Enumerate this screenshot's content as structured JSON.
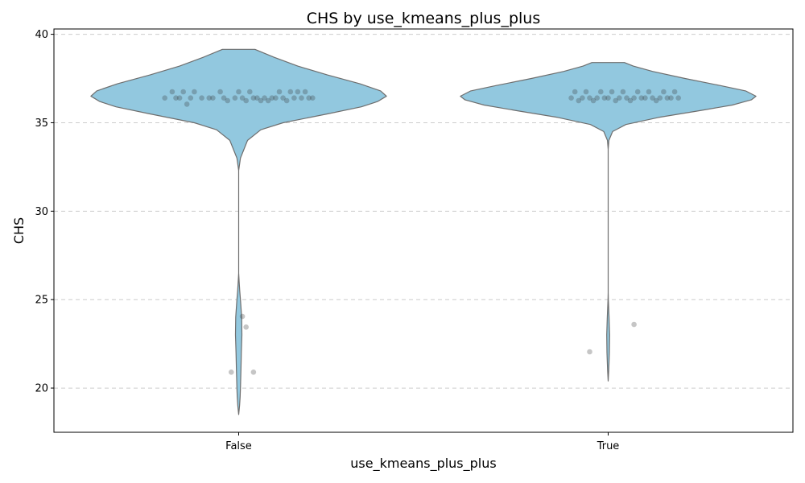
{
  "chart_data": {
    "type": "violin",
    "title": "CHS by use_kmeans_plus_plus",
    "xlabel": "use_kmeans_plus_plus",
    "ylabel": "CHS",
    "ylim": [
      17.5,
      40.3
    ],
    "yticks": [
      20,
      25,
      30,
      35,
      40
    ],
    "grid": "y-dashed",
    "categories": [
      "False",
      "True"
    ],
    "colors": {
      "violin_fill": "#92c8df",
      "violin_edge": "#6e6e6e",
      "point": "#333333",
      "grid": "#cccccc"
    },
    "groups": [
      {
        "name": "False",
        "range": [
          18.5,
          39.15
        ],
        "density": [
          [
            18.5,
            0.0
          ],
          [
            19.0,
            0.006
          ],
          [
            19.5,
            0.01
          ],
          [
            20.0,
            0.012
          ],
          [
            21.0,
            0.015
          ],
          [
            22.0,
            0.018
          ],
          [
            23.0,
            0.022
          ],
          [
            24.0,
            0.02
          ],
          [
            25.0,
            0.012
          ],
          [
            25.5,
            0.007
          ],
          [
            26.0,
            0.003
          ],
          [
            26.5,
            0.0
          ],
          [
            27.0,
            0.0
          ],
          [
            30.0,
            0.0
          ],
          [
            32.3,
            0.0
          ],
          [
            33.0,
            0.012
          ],
          [
            34.0,
            0.06
          ],
          [
            34.6,
            0.15
          ],
          [
            35.0,
            0.3
          ],
          [
            35.5,
            0.6
          ],
          [
            35.9,
            0.83
          ],
          [
            36.2,
            0.94
          ],
          [
            36.4,
            0.98
          ],
          [
            36.5,
            1.0
          ],
          [
            36.8,
            0.96
          ],
          [
            37.2,
            0.82
          ],
          [
            37.7,
            0.6
          ],
          [
            38.2,
            0.4
          ],
          [
            38.7,
            0.24
          ],
          [
            39.15,
            0.11
          ]
        ],
        "points": [
          {
            "x": -0.2,
            "y": 36.4
          },
          {
            "x": -0.18,
            "y": 36.75
          },
          {
            "x": -0.17,
            "y": 36.4
          },
          {
            "x": -0.16,
            "y": 36.4
          },
          {
            "x": -0.15,
            "y": 36.75
          },
          {
            "x": -0.14,
            "y": 36.05
          },
          {
            "x": -0.13,
            "y": 36.4
          },
          {
            "x": -0.12,
            "y": 36.75
          },
          {
            "x": -0.1,
            "y": 36.4
          },
          {
            "x": -0.08,
            "y": 36.4
          },
          {
            "x": -0.07,
            "y": 36.4
          },
          {
            "x": -0.05,
            "y": 36.75
          },
          {
            "x": -0.04,
            "y": 36.4
          },
          {
            "x": -0.03,
            "y": 36.25
          },
          {
            "x": -0.01,
            "y": 36.4
          },
          {
            "x": 0.0,
            "y": 36.75
          },
          {
            "x": 0.01,
            "y": 36.4
          },
          {
            "x": 0.02,
            "y": 36.25
          },
          {
            "x": 0.03,
            "y": 36.75
          },
          {
            "x": 0.04,
            "y": 36.4
          },
          {
            "x": 0.05,
            "y": 36.4
          },
          {
            "x": 0.06,
            "y": 36.25
          },
          {
            "x": 0.07,
            "y": 36.4
          },
          {
            "x": 0.08,
            "y": 36.25
          },
          {
            "x": 0.09,
            "y": 36.4
          },
          {
            "x": 0.1,
            "y": 36.4
          },
          {
            "x": 0.11,
            "y": 36.75
          },
          {
            "x": 0.12,
            "y": 36.4
          },
          {
            "x": 0.13,
            "y": 36.25
          },
          {
            "x": 0.14,
            "y": 36.75
          },
          {
            "x": 0.15,
            "y": 36.4
          },
          {
            "x": 0.16,
            "y": 36.75
          },
          {
            "x": 0.17,
            "y": 36.4
          },
          {
            "x": 0.18,
            "y": 36.75
          },
          {
            "x": 0.19,
            "y": 36.4
          },
          {
            "x": 0.2,
            "y": 36.4
          },
          {
            "x": 0.01,
            "y": 24.05
          },
          {
            "x": 0.02,
            "y": 23.45
          },
          {
            "x": -0.02,
            "y": 20.9
          },
          {
            "x": 0.04,
            "y": 20.9
          }
        ]
      },
      {
        "name": "True",
        "range": [
          20.4,
          38.4
        ],
        "density": [
          [
            20.4,
            0.0
          ],
          [
            21.0,
            0.004
          ],
          [
            22.0,
            0.008
          ],
          [
            23.0,
            0.01
          ],
          [
            24.0,
            0.006
          ],
          [
            25.0,
            0.001
          ],
          [
            25.4,
            0.0
          ],
          [
            30.0,
            0.0
          ],
          [
            33.5,
            0.0
          ],
          [
            34.0,
            0.005
          ],
          [
            34.5,
            0.03
          ],
          [
            34.9,
            0.12
          ],
          [
            35.3,
            0.34
          ],
          [
            35.7,
            0.63
          ],
          [
            36.0,
            0.84
          ],
          [
            36.3,
            0.97
          ],
          [
            36.5,
            1.0
          ],
          [
            36.8,
            0.93
          ],
          [
            37.1,
            0.76
          ],
          [
            37.5,
            0.52
          ],
          [
            37.9,
            0.3
          ],
          [
            38.2,
            0.17
          ],
          [
            38.4,
            0.11
          ]
        ],
        "points": [
          {
            "x": -0.1,
            "y": 36.4
          },
          {
            "x": -0.09,
            "y": 36.75
          },
          {
            "x": -0.08,
            "y": 36.25
          },
          {
            "x": -0.07,
            "y": 36.4
          },
          {
            "x": -0.06,
            "y": 36.75
          },
          {
            "x": -0.05,
            "y": 36.4
          },
          {
            "x": -0.04,
            "y": 36.25
          },
          {
            "x": -0.03,
            "y": 36.4
          },
          {
            "x": -0.02,
            "y": 36.75
          },
          {
            "x": -0.01,
            "y": 36.4
          },
          {
            "x": 0.0,
            "y": 36.4
          },
          {
            "x": 0.01,
            "y": 36.75
          },
          {
            "x": 0.02,
            "y": 36.25
          },
          {
            "x": 0.03,
            "y": 36.4
          },
          {
            "x": 0.04,
            "y": 36.75
          },
          {
            "x": 0.05,
            "y": 36.4
          },
          {
            "x": 0.06,
            "y": 36.25
          },
          {
            "x": 0.07,
            "y": 36.4
          },
          {
            "x": 0.08,
            "y": 36.75
          },
          {
            "x": 0.09,
            "y": 36.4
          },
          {
            "x": 0.1,
            "y": 36.4
          },
          {
            "x": 0.11,
            "y": 36.75
          },
          {
            "x": 0.12,
            "y": 36.4
          },
          {
            "x": 0.13,
            "y": 36.25
          },
          {
            "x": 0.14,
            "y": 36.4
          },
          {
            "x": 0.15,
            "y": 36.75
          },
          {
            "x": 0.16,
            "y": 36.4
          },
          {
            "x": 0.17,
            "y": 36.4
          },
          {
            "x": 0.18,
            "y": 36.75
          },
          {
            "x": 0.19,
            "y": 36.4
          },
          {
            "x": -0.05,
            "y": 22.05
          },
          {
            "x": 0.07,
            "y": 23.6
          }
        ]
      }
    ]
  }
}
